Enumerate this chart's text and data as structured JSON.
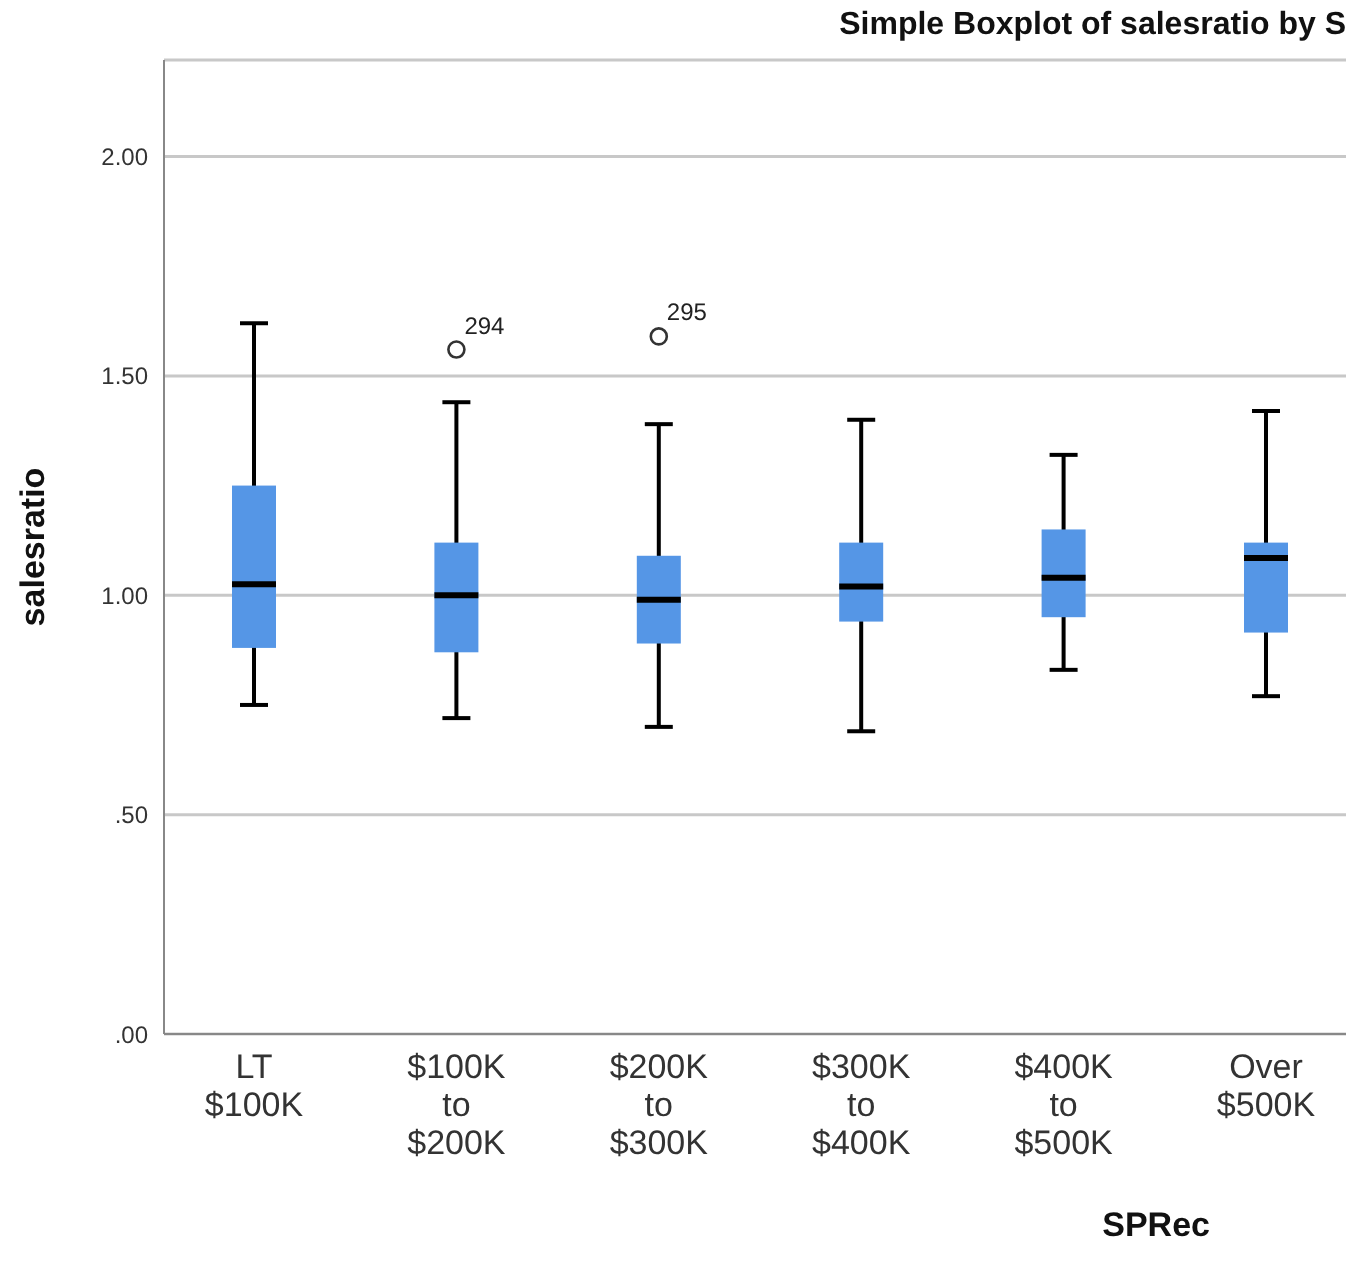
{
  "chart_data": {
    "type": "box",
    "title": "Simple Boxplot of salesratio by S",
    "xlabel": "SPRec",
    "ylabel": "salesratio",
    "categories": [
      "LT $100K",
      "$100K to $200K",
      "$200K to $300K",
      "$300K to $400K",
      "$400K to $500K",
      "Over $500K"
    ],
    "color": "#5596e6",
    "boxes": [
      {
        "low": 0.75,
        "q1": 0.88,
        "median": 1.025,
        "q3": 1.25,
        "high": 1.62
      },
      {
        "low": 0.72,
        "q1": 0.87,
        "median": 1.0,
        "q3": 1.12,
        "high": 1.44,
        "outliers": [
          1.56
        ]
      },
      {
        "low": 0.7,
        "q1": 0.89,
        "median": 0.99,
        "q3": 1.09,
        "high": 1.39,
        "outliers": [
          1.59
        ]
      },
      {
        "low": 0.69,
        "q1": 0.94,
        "median": 1.02,
        "q3": 1.12,
        "high": 1.4
      },
      {
        "low": 0.83,
        "q1": 0.95,
        "median": 1.04,
        "q3": 1.15,
        "high": 1.32
      },
      {
        "low": 0.77,
        "q1": 0.915,
        "median": 1.085,
        "q3": 1.12,
        "high": 1.42
      }
    ],
    "ylim": [
      0,
      2.22
    ],
    "yticks": [
      {
        "value": 0,
        "label": ".00"
      },
      {
        "value": 0.5,
        "label": ".50"
      },
      {
        "value": 1,
        "label": "1.00"
      },
      {
        "value": 1.5,
        "label": "1.50"
      },
      {
        "value": 2,
        "label": "2.00"
      }
    ],
    "grid": "y",
    "annotations": [
      "294",
      "295"
    ]
  }
}
